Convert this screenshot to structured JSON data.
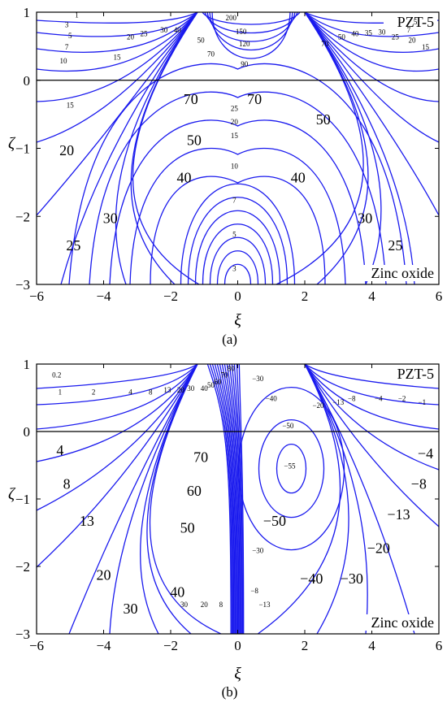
{
  "colors": {
    "contour": "#1a1aee",
    "axes": "#000000",
    "background": "#ffffff"
  },
  "chart_data": [
    {
      "type": "contour",
      "panel_label": "(a)",
      "xlabel": "ξ",
      "ylabel": "ζ",
      "xlim": [
        -6,
        6
      ],
      "ylim": [
        -3,
        1
      ],
      "xticks": [
        "−6",
        "−4",
        "−2",
        "0",
        "2",
        "4",
        "6"
      ],
      "yticks": [
        "1",
        "0",
        "−1",
        "−2",
        "−3"
      ],
      "top_material": "PZT-5",
      "bottom_material": "Zinc oxide",
      "interface_y": 0,
      "singular_points_x": [
        -1.2,
        2
      ],
      "contour_labels_large": [
        "70",
        "70",
        "50",
        "50",
        "40",
        "40",
        "30",
        "30",
        "20",
        "25",
        "25"
      ],
      "contour_labels_small": [
        "1",
        "3",
        "5",
        "7",
        "10",
        "15",
        "15",
        "20",
        "25",
        "30",
        "40",
        "50",
        "70",
        "90",
        "120",
        "150",
        "200",
        "70",
        "50",
        "40",
        "35",
        "30",
        "25",
        "20",
        "15",
        "7",
        "5",
        "25",
        "20",
        "15",
        "10",
        "7",
        "5",
        "3"
      ],
      "grid": false
    },
    {
      "type": "contour",
      "panel_label": "(b)",
      "xlabel": "ξ",
      "ylabel": "ζ",
      "xlim": [
        -6,
        6
      ],
      "ylim": [
        -3,
        1
      ],
      "xticks": [
        "−6",
        "−4",
        "−2",
        "0",
        "2",
        "4",
        "6"
      ],
      "yticks": [
        "1",
        "0",
        "−1",
        "−2",
        "−3"
      ],
      "top_material": "PZT-5",
      "bottom_material": "Zinc oxide",
      "interface_y": 0,
      "singular_points_x": [
        -1.2,
        2
      ],
      "contour_labels_large": [
        "4",
        "8",
        "13",
        "20",
        "30",
        "40",
        "50",
        "60",
        "70",
        "−4",
        "−8",
        "−13",
        "−20",
        "−30",
        "−40",
        "−50"
      ],
      "contour_labels_small": [
        "0.2",
        "1",
        "2",
        "4",
        "8",
        "13",
        "20",
        "30",
        "40",
        "50",
        "60",
        "70",
        "80",
        "−30",
        "−40",
        "−50",
        "−55",
        "−20",
        "−13",
        "−8",
        "−4",
        "−2",
        "−1",
        "30",
        "20",
        "8",
        "−8",
        "−13",
        "−30"
      ],
      "grid": false
    }
  ]
}
